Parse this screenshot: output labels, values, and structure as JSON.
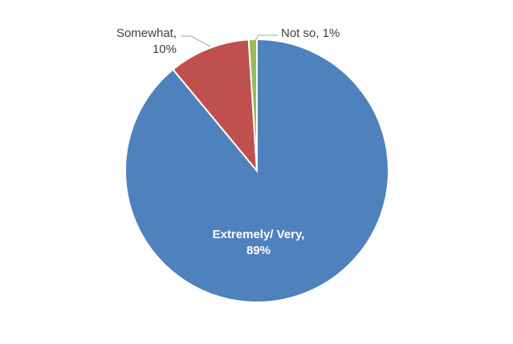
{
  "chart_data": {
    "type": "pie",
    "values": [
      89,
      10,
      1
    ],
    "value_labels": [
      "Extremely/ Very, 89%",
      "Somewhat, 10%",
      "Not so, 1%"
    ],
    "colors": [
      "#4f81bd",
      "#c0504d",
      "#9bbb59"
    ]
  }
}
